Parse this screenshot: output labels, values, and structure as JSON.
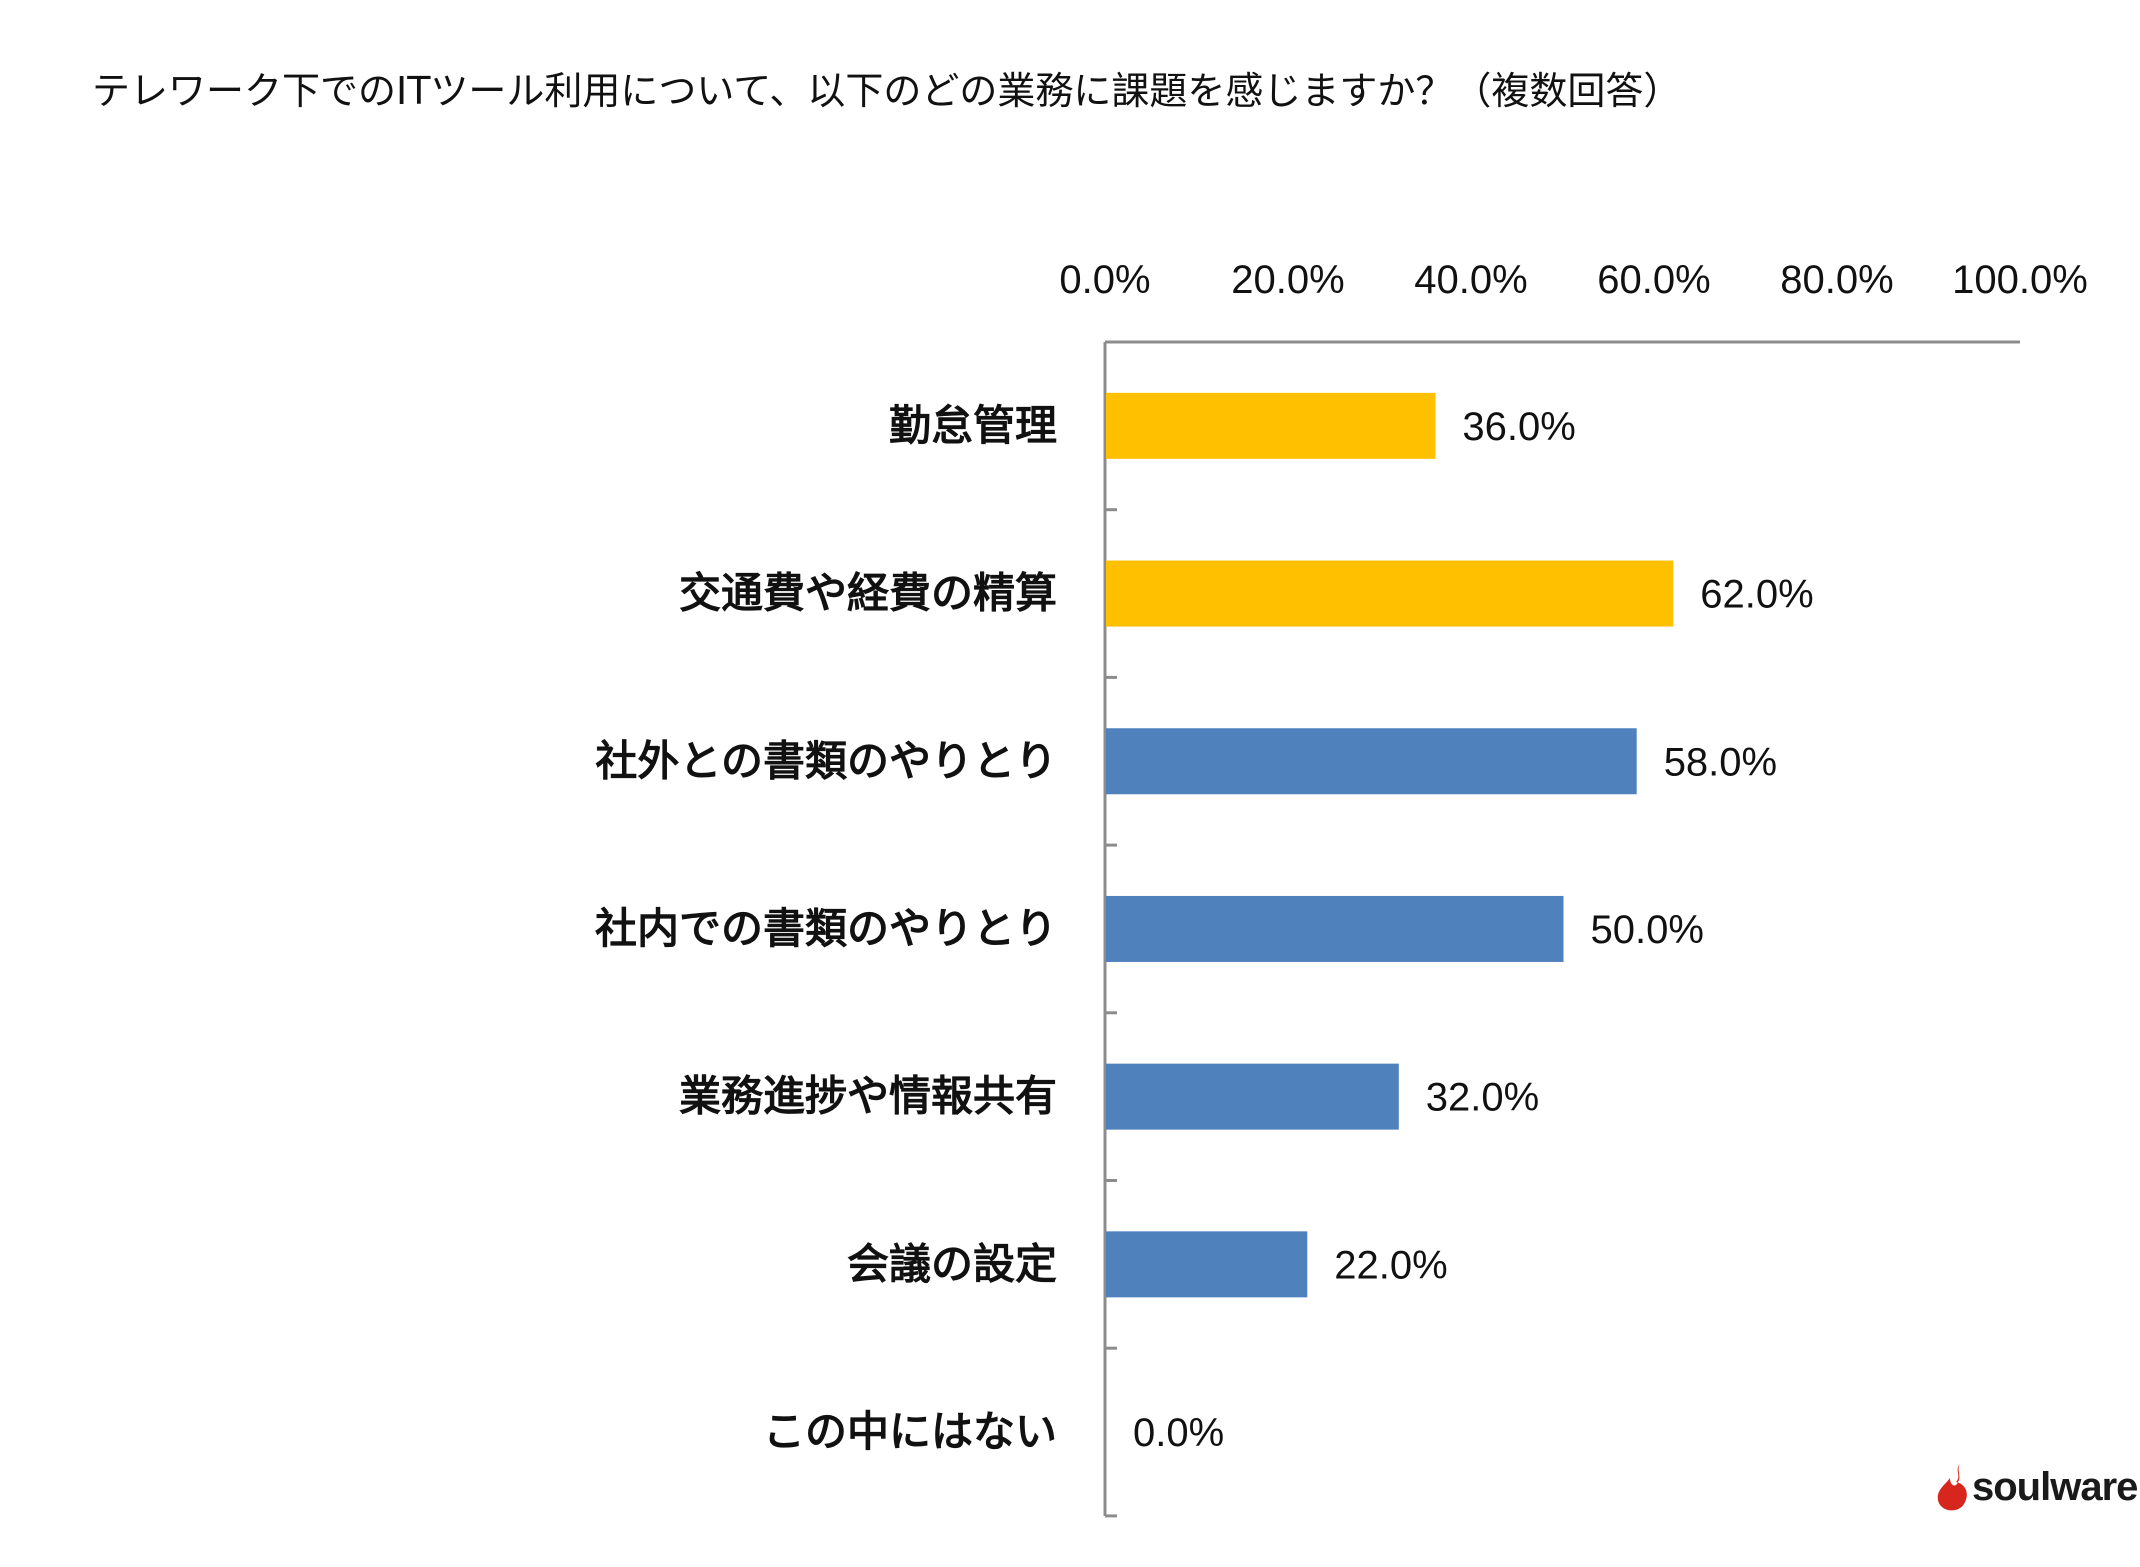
{
  "chart_data": {
    "type": "bar",
    "orientation": "horizontal",
    "title": "テレワーク下でのITツール利用について、以下のどの業務に課題を感じますか？（複数回答）",
    "categories": [
      "勤怠管理",
      "交通費や経費の精算",
      "社外との書類のやりとり",
      "社内での書類のやりとり",
      "業務進捗や情報共有",
      "会議の設定",
      "この中にはない"
    ],
    "values": [
      36.0,
      62.0,
      58.0,
      50.0,
      32.0,
      22.0,
      0.0
    ],
    "value_labels": [
      "36.0%",
      "62.0%",
      "58.0%",
      "50.0%",
      "32.0%",
      "22.0%",
      "0.0%"
    ],
    "bar_colors": [
      "#FFC000",
      "#FFC000",
      "#4F81BD",
      "#4F81BD",
      "#4F81BD",
      "#4F81BD",
      "#4F81BD"
    ],
    "xlim": [
      0,
      100
    ],
    "x_ticks": [
      0,
      20,
      40,
      60,
      80,
      100
    ],
    "x_tick_labels": [
      "0.0%",
      "20.0%",
      "40.0%",
      "60.0%",
      "80.0%",
      "100.0%"
    ],
    "x_axis_position": "top",
    "grid": false,
    "legend": "none"
  },
  "logo": {
    "text": "soulware.",
    "mark_color": "#D7261E"
  }
}
